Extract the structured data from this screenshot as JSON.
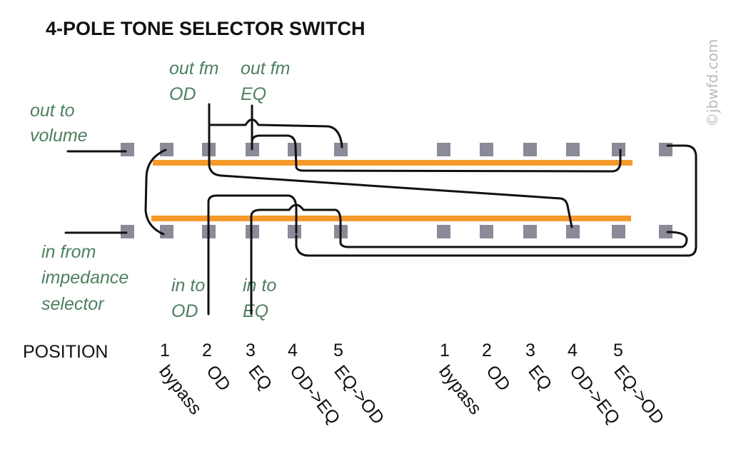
{
  "title": "4-POLE TONE SELECTOR SWITCH",
  "watermark": "©jbwfd.com",
  "labels": {
    "out_to_volume": [
      "out to",
      "volume"
    ],
    "out_fm_od": [
      "out fm",
      "OD"
    ],
    "out_fm_eq": [
      "out fm",
      "EQ"
    ],
    "in_from_impedance": [
      "in from",
      "impedance",
      "selector"
    ],
    "in_to_od": [
      "in to",
      "OD"
    ],
    "in_to_eq": [
      "in to",
      "EQ"
    ]
  },
  "position_label": "POSITION",
  "positions": [
    {
      "number": "1",
      "name": "bypass"
    },
    {
      "number": "2",
      "name": "OD"
    },
    {
      "number": "3",
      "name": "EQ"
    },
    {
      "number": "4",
      "name": "OD->EQ"
    },
    {
      "number": "5",
      "name": "EQ->OD"
    }
  ],
  "colors": {
    "bar": "#f39a2a",
    "pad": "#8a8a98",
    "label": "#4e8060",
    "wire": "#111111"
  }
}
